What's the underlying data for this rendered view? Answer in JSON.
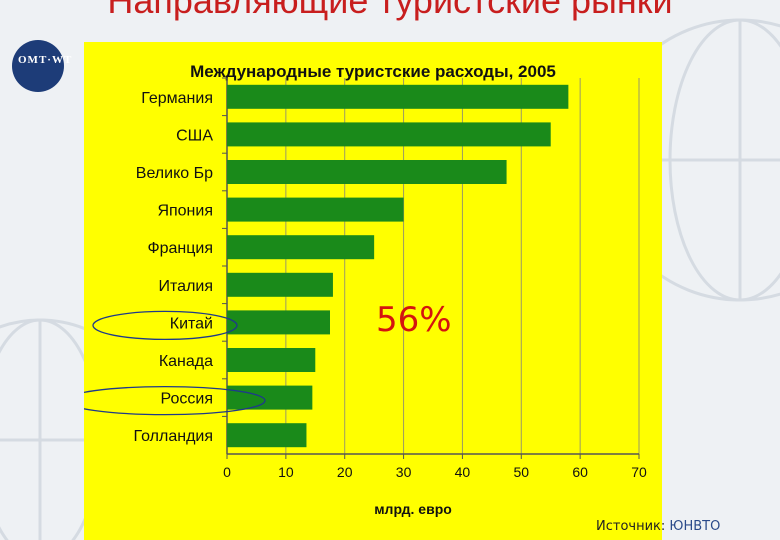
{
  "slide": {
    "title": "Направляющие туристские рынки",
    "logo_text": "OMT·WT",
    "annotation": "56%",
    "source_prefix": "Источник: ",
    "source_org": "ЮНВТО"
  },
  "colors": {
    "panel": "#ffff00",
    "bar": "#1a8a1a",
    "title": "#c81e1e",
    "annotation": "#d4140f",
    "ellipse": "#1e3a8a"
  },
  "chart_data": {
    "type": "bar",
    "orientation": "horizontal",
    "title": "Международные туристские расходы, 2005",
    "xlabel": "млрд. евро",
    "ylabel": "",
    "xlim": [
      0,
      70
    ],
    "xticks": [
      0,
      10,
      20,
      30,
      40,
      50,
      60,
      70
    ],
    "grid": true,
    "categories": [
      "Германия",
      "США",
      "Велико Бр",
      "Япония",
      "Франция",
      "Италия",
      "Китай",
      "Канада",
      "Россия",
      "Голландия"
    ],
    "values": [
      58,
      55,
      47.5,
      30,
      25,
      18,
      17.5,
      15,
      14.5,
      13.5
    ],
    "highlighted": [
      "Китай",
      "Россия"
    ]
  }
}
